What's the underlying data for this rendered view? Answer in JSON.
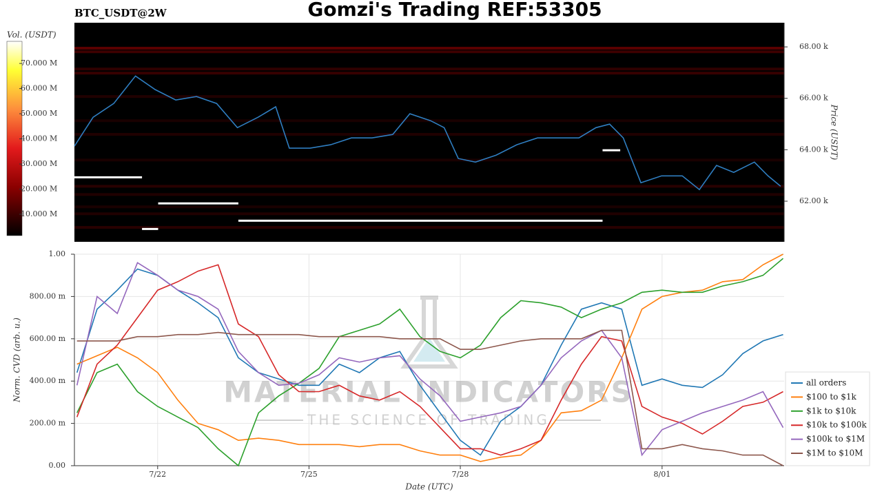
{
  "title": "Gomzi's Trading REF:53305",
  "watermark": {
    "title": "MATERIAL INDICATORS",
    "subtitle": "THE SCIENCE OF TRADING"
  },
  "chart_data": [
    {
      "type": "heatmap",
      "title": "BTC_USDT@2W",
      "ylabel": "Price (USDT)",
      "yaxis_side": "right",
      "xlim": [
        20.35,
        34.42
      ],
      "ylim": [
        60420,
        68940
      ],
      "yticks": [
        {
          "value": 62000,
          "label": "62.00 k"
        },
        {
          "value": 64000,
          "label": "64.00 k"
        },
        {
          "value": 66000,
          "label": "66.00 k"
        },
        {
          "value": 68000,
          "label": "68.00 k"
        }
      ],
      "colorbar": {
        "label": "Vol. (USDT)",
        "clim": [
          1500000,
          78800000
        ],
        "ticks": [
          {
            "value": 10000000,
            "label": "10.000 M"
          },
          {
            "value": 20000000,
            "label": "20.000 M"
          },
          {
            "value": 30000000,
            "label": "30.000 M"
          },
          {
            "value": 40000000,
            "label": "40.000 M"
          },
          {
            "value": 50000000,
            "label": "50.000 M"
          },
          {
            "value": 60000000,
            "label": "60.000 M"
          },
          {
            "value": 70000000,
            "label": "70.000 M"
          }
        ]
      },
      "heatmap": {
        "prices": [
          67950,
          67810,
          67140,
          66980,
          66070,
          65130,
          64600,
          63600,
          62580,
          62260,
          61780,
          61510,
          60980
        ],
        "volumes": [
          14000000,
          10000000,
          8000000,
          9000000,
          6000000,
          5000000,
          6000000,
          5000000,
          7000000,
          6000000,
          5000000,
          6000000,
          7000000
        ]
      },
      "price_line": {
        "color": "#2f7ec1",
        "x": [
          20.35,
          20.72,
          21.13,
          21.56,
          21.95,
          22.36,
          22.77,
          23.17,
          23.58,
          23.99,
          24.34,
          24.61,
          25.02,
          25.43,
          25.84,
          26.25,
          26.66,
          27.0,
          27.41,
          27.68,
          27.96,
          28.3,
          28.71,
          29.12,
          29.53,
          29.94,
          30.35,
          30.69,
          30.96,
          31.23,
          31.58,
          31.99,
          32.4,
          32.74,
          33.08,
          33.42,
          33.83,
          34.1,
          34.35
        ],
        "values": [
          64140,
          65265,
          65800,
          66870,
          66340,
          65935,
          66070,
          65800,
          64860,
          65265,
          65670,
          64060,
          64060,
          64195,
          64460,
          64460,
          64595,
          65400,
          65130,
          64860,
          63660,
          63520,
          63790,
          64195,
          64460,
          64460,
          64460,
          64860,
          64995,
          64460,
          62715,
          62985,
          62985,
          62450,
          63390,
          63120,
          63520,
          62985,
          62580
        ]
      },
      "orders": {
        "color": "#ffffff",
        "start": [
          20.35,
          22.01,
          21.69,
          23.6,
          30.82
        ],
        "end": [
          21.69,
          23.6,
          22.01,
          30.82,
          31.17
        ],
        "price": [
          62930,
          61915,
          60920,
          61240,
          63980
        ]
      }
    },
    {
      "type": "line",
      "xlabel": "Date (UTC)",
      "ylabel": "Norm. CVD (arb. u.)",
      "grid": true,
      "legend": "right",
      "xlim": [
        20.35,
        34.42
      ],
      "ylim": [
        0,
        1
      ],
      "xticks": [
        {
          "value": 22,
          "label": "7/22"
        },
        {
          "value": 25,
          "label": "7/25"
        },
        {
          "value": 28,
          "label": "7/28"
        },
        {
          "value": 32,
          "label": "8/01"
        }
      ],
      "yticks": [
        {
          "value": 0,
          "label": "0.00"
        },
        {
          "value": 0.2,
          "label": "200.00 m"
        },
        {
          "value": 0.4,
          "label": "400.00 m"
        },
        {
          "value": 0.6,
          "label": "600.00 m"
        },
        {
          "value": 0.8,
          "label": "800.00 m"
        },
        {
          "value": 1,
          "label": "1.00"
        }
      ],
      "x": [
        20.4,
        20.8,
        21.2,
        21.6,
        22.0,
        22.4,
        22.8,
        23.2,
        23.6,
        24.0,
        24.4,
        24.8,
        25.2,
        25.6,
        26.0,
        26.4,
        26.8,
        27.2,
        27.6,
        28.0,
        28.4,
        28.8,
        29.2,
        29.6,
        30.0,
        30.4,
        30.8,
        31.2,
        31.6,
        32.0,
        32.4,
        32.8,
        33.2,
        33.6,
        34.0,
        34.4
      ],
      "series": [
        {
          "name": "all orders",
          "color": "#1f77b4",
          "values": [
            0.44,
            0.74,
            0.83,
            0.93,
            0.9,
            0.83,
            0.77,
            0.7,
            0.51,
            0.44,
            0.41,
            0.38,
            0.38,
            0.48,
            0.44,
            0.51,
            0.54,
            0.38,
            0.25,
            0.12,
            0.05,
            0.21,
            0.28,
            0.38,
            0.57,
            0.74,
            0.77,
            0.74,
            0.38,
            0.41,
            0.38,
            0.37,
            0.43,
            0.53,
            0.59,
            0.62
          ]
        },
        {
          "name": "$100 to $1k",
          "color": "#ff7f0e",
          "values": [
            0.48,
            0.52,
            0.56,
            0.51,
            0.44,
            0.31,
            0.2,
            0.17,
            0.12,
            0.13,
            0.12,
            0.1,
            0.1,
            0.1,
            0.09,
            0.1,
            0.1,
            0.07,
            0.05,
            0.05,
            0.02,
            0.04,
            0.05,
            0.12,
            0.25,
            0.26,
            0.31,
            0.51,
            0.74,
            0.8,
            0.82,
            0.83,
            0.87,
            0.88,
            0.95,
            1.0
          ]
        },
        {
          "name": "$1k to $10k",
          "color": "#2ca02c",
          "values": [
            0.25,
            0.44,
            0.48,
            0.35,
            0.28,
            0.23,
            0.18,
            0.08,
            0.0,
            0.25,
            0.33,
            0.39,
            0.46,
            0.61,
            0.64,
            0.67,
            0.74,
            0.61,
            0.54,
            0.51,
            0.57,
            0.7,
            0.78,
            0.77,
            0.75,
            0.7,
            0.74,
            0.77,
            0.82,
            0.83,
            0.82,
            0.82,
            0.85,
            0.87,
            0.9,
            0.98
          ]
        },
        {
          "name": "$10k to $100k",
          "color": "#d62728",
          "values": [
            0.23,
            0.48,
            0.57,
            0.7,
            0.83,
            0.87,
            0.92,
            0.95,
            0.67,
            0.61,
            0.43,
            0.35,
            0.35,
            0.38,
            0.33,
            0.31,
            0.35,
            0.28,
            0.18,
            0.08,
            0.08,
            0.05,
            0.08,
            0.12,
            0.31,
            0.48,
            0.61,
            0.59,
            0.28,
            0.23,
            0.2,
            0.15,
            0.21,
            0.28,
            0.3,
            0.35
          ]
        },
        {
          "name": "$100k to $1M",
          "color": "#9467bd",
          "values": [
            0.38,
            0.8,
            0.72,
            0.96,
            0.9,
            0.83,
            0.8,
            0.74,
            0.54,
            0.44,
            0.38,
            0.39,
            0.43,
            0.51,
            0.49,
            0.51,
            0.52,
            0.41,
            0.33,
            0.21,
            0.23,
            0.25,
            0.28,
            0.38,
            0.51,
            0.59,
            0.64,
            0.51,
            0.05,
            0.17,
            0.21,
            0.25,
            0.28,
            0.31,
            0.35,
            0.18
          ]
        },
        {
          "name": "$1M to $10M",
          "color": "#8c564b",
          "values": [
            0.59,
            0.59,
            0.59,
            0.61,
            0.61,
            0.62,
            0.62,
            0.63,
            0.62,
            0.62,
            0.62,
            0.62,
            0.61,
            0.61,
            0.61,
            0.61,
            0.6,
            0.6,
            0.6,
            0.55,
            0.55,
            0.57,
            0.59,
            0.6,
            0.6,
            0.6,
            0.64,
            0.64,
            0.08,
            0.08,
            0.1,
            0.08,
            0.07,
            0.05,
            0.05,
            0.0
          ]
        }
      ]
    }
  ]
}
